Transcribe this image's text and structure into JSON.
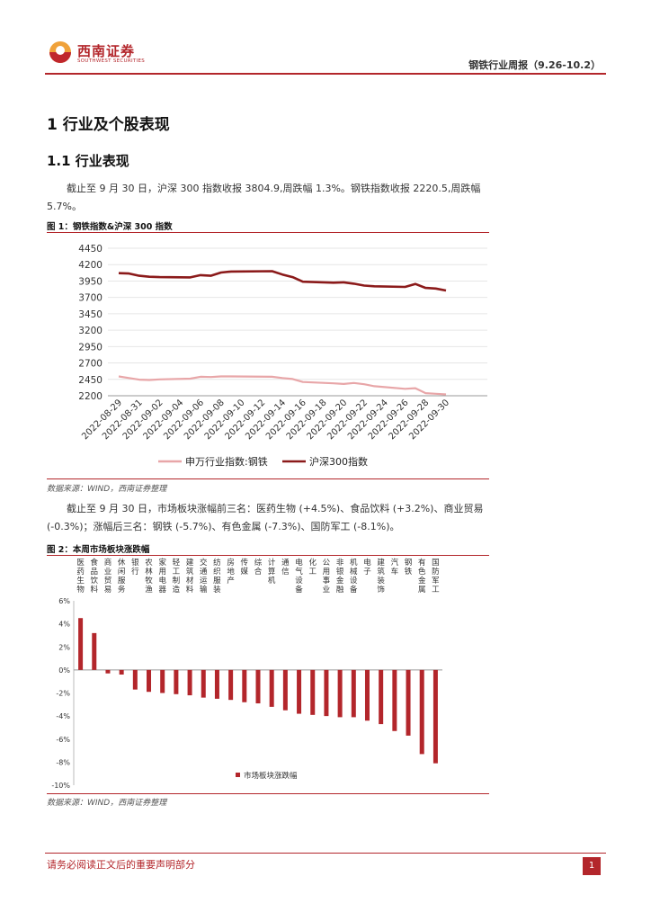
{
  "header": {
    "brand_cn": "西南证券",
    "brand_en": "SOUTHWEST SECURITIES",
    "report_title": "钢铁行业周报（9.26-10.2）"
  },
  "section1": {
    "heading": "1 行业及个股表现",
    "sub_heading": "1.1 行业表现",
    "para1": "截止至 9 月 30 日，沪深 300 指数收报 3804.9,周跌幅 1.3%。钢铁指数收报 2220.5,周跌幅 5.7%。",
    "para2": "截止至 9 月 30 日，市场板块涨幅前三名：医药生物 (+4.5%)、食品饮料 (+3.2%)、商业贸易 (-0.3%)；涨幅后三名：钢铁 (-5.7%)、有色金属 (-7.3%)、国防军工 (-8.1%)。"
  },
  "figure1": {
    "title": "图 1：钢铁指数&沪深 300 指数",
    "source": "数据来源：WIND，西南证券整理"
  },
  "figure2": {
    "title": "图 2：本周市场板块涨跌幅",
    "source": "数据来源：WIND，西南证券整理"
  },
  "footer": {
    "disclaimer": "请务必阅读正文后的重要声明部分",
    "page_number": "1"
  },
  "chart_data": [
    {
      "type": "line",
      "title": "图 1：钢铁指数&沪深 300 指数",
      "x": [
        "2022-08-29",
        "2022-08-30",
        "2022-08-31",
        "2022-09-01",
        "2022-09-02",
        "2022-09-05",
        "2022-09-06",
        "2022-09-07",
        "2022-09-08",
        "2022-09-09",
        "2022-09-13",
        "2022-09-14",
        "2022-09-15",
        "2022-09-16",
        "2022-09-19",
        "2022-09-20",
        "2022-09-21",
        "2022-09-22",
        "2022-09-23",
        "2022-09-26",
        "2022-09-27",
        "2022-09-28",
        "2022-09-29",
        "2022-09-30"
      ],
      "tick_labels": [
        "2022-08-29",
        "2022-08-31",
        "2022-09-02",
        "2022-09-04",
        "2022-09-06",
        "2022-09-08",
        "2022-09-10",
        "2022-09-12",
        "2022-09-14",
        "2022-09-16",
        "2022-09-18",
        "2022-09-20",
        "2022-09-22",
        "2022-09-24",
        "2022-09-26",
        "2022-09-28",
        "2022-09-30"
      ],
      "series": [
        {
          "name": "申万行业指数:钢铁",
          "color": "#e8a6a8",
          "values": [
            2495,
            2470,
            2445,
            2440,
            2450,
            2460,
            2490,
            2485,
            2495,
            2495,
            2490,
            2470,
            2455,
            2410,
            2390,
            2380,
            2395,
            2375,
            2345,
            2305,
            2315,
            2240,
            2230,
            2220.5
          ]
        },
        {
          "name": "沪深300指数",
          "color": "#8b1a1a",
          "values": [
            4070,
            4065,
            4030,
            4015,
            4010,
            4005,
            4040,
            4030,
            4080,
            4095,
            4100,
            4050,
            4010,
            3940,
            3925,
            3930,
            3910,
            3880,
            3870,
            3860,
            3905,
            3845,
            3835,
            3804.9
          ]
        }
      ],
      "ylim": [
        2200,
        4450
      ],
      "yticks": [
        "4450",
        "4200",
        "3950",
        "3700",
        "3450",
        "3200",
        "2950",
        "2700",
        "2450",
        "2200"
      ],
      "legend_position": "bottom"
    },
    {
      "type": "bar",
      "title": "图 2：本周市场板块涨跌幅",
      "categories": [
        "医药生物",
        "食品饮料",
        "商业贸易",
        "休闲服务",
        "银行",
        "农林牧渔",
        "家用电器",
        "轻工制造",
        "建筑材料",
        "交通运输",
        "纺织服装",
        "房地产",
        "传媒",
        "综合",
        "计算机",
        "通信",
        "电气设备",
        "化工",
        "公用事业",
        "非银金融",
        "机械设备",
        "电子",
        "建筑装饰",
        "汽车",
        "钢铁",
        "有色金属",
        "国防军工"
      ],
      "values": [
        4.5,
        3.2,
        -0.3,
        -0.4,
        -1.7,
        -1.9,
        -2.0,
        -2.1,
        -2.2,
        -2.4,
        -2.5,
        -2.6,
        -2.8,
        -2.9,
        -3.2,
        -3.5,
        -3.8,
        -3.9,
        -4.0,
        -4.1,
        -4.1,
        -4.4,
        -4.7,
        -5.3,
        -5.7,
        -7.3,
        -8.1
      ],
      "ylim": [
        -10,
        6
      ],
      "yticks": [
        "6%",
        "4%",
        "2%",
        "0%",
        "-2%",
        "-4%",
        "-6%",
        "-8%",
        "-10%"
      ],
      "legend": "市场板块涨跌幅",
      "color": "#b3262b"
    }
  ]
}
